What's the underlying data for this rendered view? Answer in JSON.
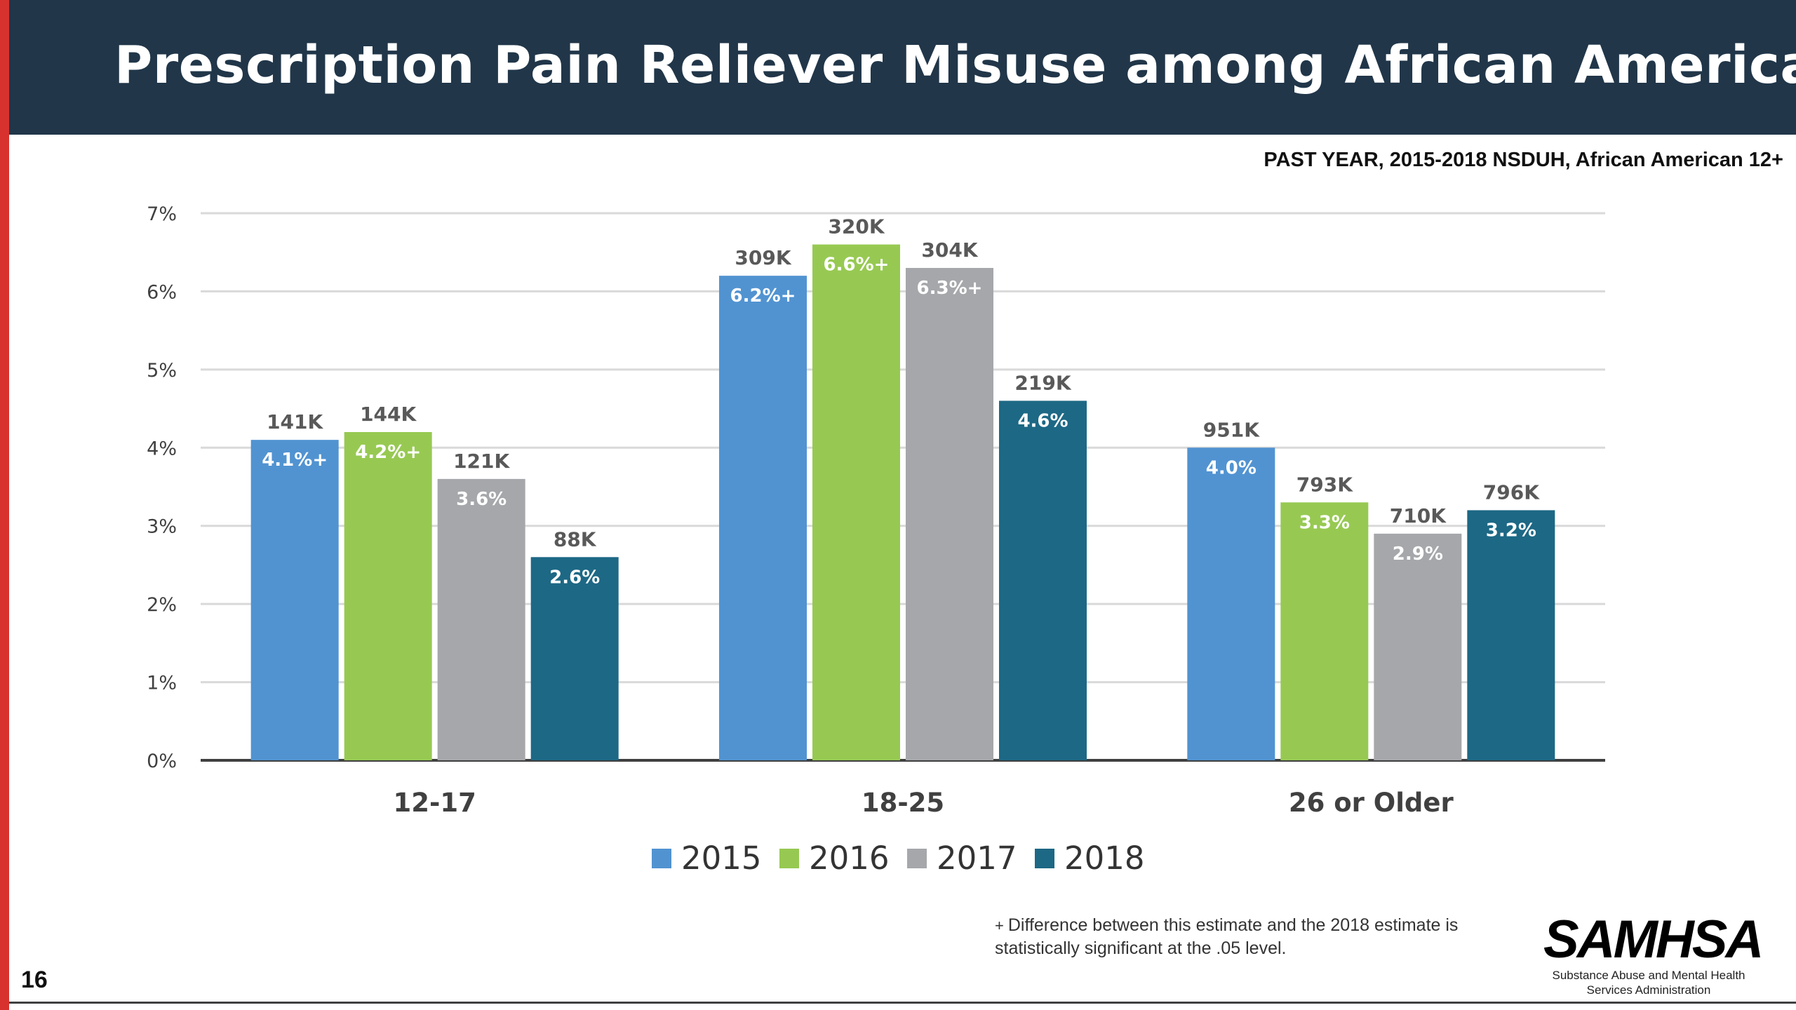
{
  "header": {
    "title": "Prescription Pain Reliever Misuse among African Americans",
    "subtitle": "PAST YEAR, 2015-2018 NSDUH, African American 12+"
  },
  "colors": {
    "header_bg": "#213649",
    "accent_bar": "#d8322f",
    "series_2015": "#5193d1",
    "series_2016": "#97c952",
    "series_2017": "#a5a7aa",
    "series_2018": "#1d6885"
  },
  "chart_data": {
    "type": "bar",
    "categories": [
      "12-17",
      "18-25",
      "26 or Older"
    ],
    "series": [
      {
        "name": "2015",
        "color": "#5193d1",
        "values": [
          4.1,
          6.2,
          4.0
        ],
        "value_labels": [
          "4.1%+",
          "6.2%+",
          "4.0%"
        ],
        "count_labels": [
          "141K",
          "309K",
          "951K"
        ]
      },
      {
        "name": "2016",
        "color": "#97c952",
        "values": [
          4.2,
          6.6,
          3.3
        ],
        "value_labels": [
          "4.2%+",
          "6.6%+",
          "3.3%"
        ],
        "count_labels": [
          "144K",
          "320K",
          "793K"
        ]
      },
      {
        "name": "2017",
        "color": "#a5a7aa",
        "values": [
          3.6,
          6.3,
          2.9
        ],
        "value_labels": [
          "3.6%",
          "6.3%+",
          "2.9%"
        ],
        "count_labels": [
          "121K",
          "304K",
          "710K"
        ]
      },
      {
        "name": "2018",
        "color": "#1d6885",
        "values": [
          2.6,
          4.6,
          3.2
        ],
        "value_labels": [
          "2.6%",
          "4.6%",
          "3.2%"
        ],
        "count_labels": [
          "88K",
          "219K",
          "796K"
        ]
      }
    ],
    "y_ticks": [
      "0%",
      "1%",
      "2%",
      "3%",
      "4%",
      "5%",
      "6%",
      "7%"
    ],
    "ylim": [
      0,
      7
    ],
    "grid": true,
    "legend_position": "bottom-center"
  },
  "footnote": {
    "marker": "+",
    "text": "Difference between this estimate and the 2018 estimate is statistically significant at the .05 level."
  },
  "logo": {
    "wordmark": "SAMHSA",
    "subtext": "Substance Abuse and Mental Health Services Administration"
  },
  "page_number": "16"
}
